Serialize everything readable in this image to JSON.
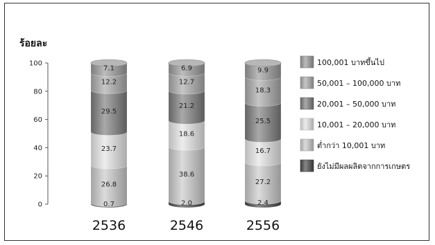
{
  "chart_data": {
    "type": "bar",
    "stacked": true,
    "ylabel": "ร้อยละ",
    "ylim": [
      0,
      100
    ],
    "yticks": [
      0,
      20,
      40,
      60,
      80,
      100
    ],
    "categories": [
      "2536",
      "2546",
      "2556"
    ],
    "series": [
      {
        "name": "ยังไม่มีผลผลิตจากการเกษตร",
        "values": [
          0.7,
          2.0,
          2.4
        ],
        "labels": [
          "0.7",
          "2.0",
          "2.4"
        ],
        "color": "#474747"
      },
      {
        "name": "ต่ำกว่า 10,001 บาท",
        "values": [
          26.8,
          38.6,
          27.2
        ],
        "labels": [
          "26.8",
          "38.6",
          "27.2"
        ],
        "color": "#c8c8c8"
      },
      {
        "name": "10,001 – 20,000 บาท",
        "values": [
          23.7,
          18.6,
          16.7
        ],
        "labels": [
          "23.7",
          "18.6",
          "16.7"
        ],
        "color": "#e4e4e4"
      },
      {
        "name": "20,001 – 50,000 บาท",
        "values": [
          29.5,
          21.2,
          25.5
        ],
        "labels": [
          "29.5",
          "21.2",
          "25.5"
        ],
        "color": "#7a7a7a"
      },
      {
        "name": "50,001 – 100,000 บาท",
        "values": [
          12.2,
          12.7,
          18.3
        ],
        "labels": [
          "12.2",
          "12.7",
          "18.3"
        ],
        "color": "#a8a8a8"
      },
      {
        "name": "100,001 บาทขึ้นไป",
        "values": [
          7.1,
          6.9,
          9.9
        ],
        "labels": [
          "7.1",
          "6.9",
          "9.9"
        ],
        "color": "#989898"
      }
    ],
    "legend_position": "right",
    "legend_order": [
      5,
      4,
      3,
      2,
      1,
      0
    ],
    "grid": false
  }
}
